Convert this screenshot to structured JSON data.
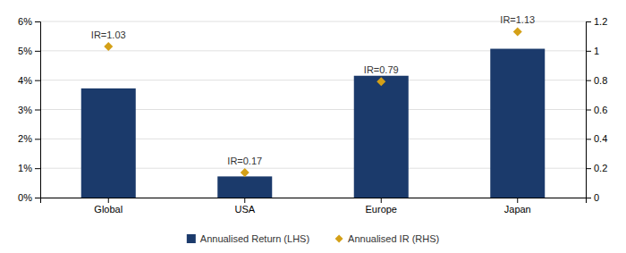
{
  "chart_data": {
    "type": "bar",
    "categories": [
      "Global",
      "USA",
      "Europe",
      "Japan"
    ],
    "series": [
      {
        "name": "Annualised Return (LHS)",
        "type": "bar",
        "color": "#1b3a6b",
        "values": [
          0.0372,
          0.0072,
          0.0415,
          0.0507
        ]
      },
      {
        "name": "Annualised IR (RHS)",
        "type": "scatter",
        "marker": "diamond",
        "color": "#d4a017",
        "axis": "y2",
        "values": [
          1.03,
          0.17,
          0.79,
          1.13
        ],
        "value_labels": [
          "IR=1.03",
          "IR=0.17",
          "IR=0.79",
          "IR=1.13"
        ]
      }
    ],
    "ylim": [
      0,
      0.06
    ],
    "yticks": [
      {
        "value": 0,
        "label": "0%"
      },
      {
        "value": 0.01,
        "label": "1%"
      },
      {
        "value": 0.02,
        "label": "2%"
      },
      {
        "value": 0.03,
        "label": "3%"
      },
      {
        "value": 0.04,
        "label": "4%"
      },
      {
        "value": 0.05,
        "label": "5%"
      },
      {
        "value": 0.06,
        "label": "6%"
      }
    ],
    "y2lim": [
      0,
      1.2
    ],
    "y2ticks": [
      0,
      0.2,
      0.4,
      0.6,
      0.8,
      1,
      1.2
    ],
    "grid": true,
    "legend": "bottom",
    "data_labels": true
  }
}
